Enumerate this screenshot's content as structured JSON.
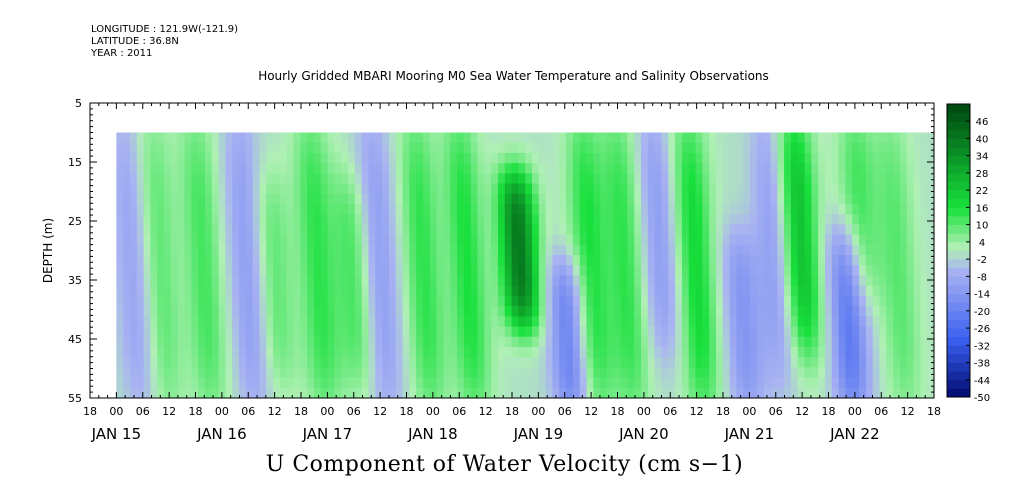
{
  "header": {
    "longitude": "LONGITUDE : 121.9W(-121.9)",
    "latitude": "LATITUDE : 36.8N",
    "year": "YEAR : 2011"
  },
  "chart_data": {
    "type": "heatmap",
    "title": "Hourly Gridded MBARI Mooring M0 Sea Water Temperature and Salinity Observations",
    "variable_label": "U Component of Water Velocity (cm s−1)",
    "ylabel": "DEPTH (m)",
    "y_ticks": [
      5,
      15,
      25,
      35,
      45,
      55
    ],
    "y_range": [
      5,
      55
    ],
    "y_data_range": [
      10,
      55
    ],
    "x_hour_ticks": [
      "18",
      "00",
      "06",
      "12",
      "18",
      "00",
      "06",
      "12",
      "18",
      "00",
      "06",
      "12",
      "18",
      "00",
      "06",
      "12",
      "18",
      "00",
      "06",
      "12",
      "18",
      "00",
      "06",
      "12",
      "18",
      "00",
      "06",
      "12",
      "18",
      "00",
      "06",
      "12",
      "18"
    ],
    "x_day_labels": [
      "JAN 15",
      "JAN 16",
      "JAN 17",
      "JAN 18",
      "JAN 19",
      "JAN 20",
      "JAN 21",
      "JAN 22"
    ],
    "x_range_hours": [
      -6,
      186
    ],
    "x_data_start_hours": 0,
    "colorbar_ticks": [
      "46",
      "40",
      "34",
      "28",
      "22",
      "16",
      "10",
      "4",
      "-2",
      "-8",
      "-14",
      "-20",
      "-26",
      "-32",
      "-38",
      "-44",
      "-50"
    ],
    "colorbar_range": [
      -50,
      52
    ],
    "colors": {
      "strong_negative": "#000a6e",
      "negative": "#3a5ff0",
      "weak_negative": "#a9b3f2",
      "weak_positive": "#b0f0b5",
      "positive": "#18e03c",
      "strong_positive": "#004d12"
    },
    "features": [
      {
        "hour": 2,
        "depth_top": 10,
        "depth_bottom": 55,
        "value": -10
      },
      {
        "hour": 8,
        "depth_top": 10,
        "depth_bottom": 55,
        "value": 10
      },
      {
        "hour": 18,
        "depth_top": 10,
        "depth_bottom": 55,
        "value": 12
      },
      {
        "hour": 28,
        "depth_top": 10,
        "depth_bottom": 55,
        "value": -12
      },
      {
        "hour": 34,
        "depth_top": 20,
        "depth_bottom": 50,
        "value": 10
      },
      {
        "hour": 44,
        "depth_top": 10,
        "depth_bottom": 55,
        "value": 14
      },
      {
        "hour": 52,
        "depth_top": 20,
        "depth_bottom": 50,
        "value": 12
      },
      {
        "hour": 58,
        "depth_top": 10,
        "depth_bottom": 55,
        "value": -12
      },
      {
        "hour": 68,
        "depth_top": 10,
        "depth_bottom": 55,
        "value": 14
      },
      {
        "hour": 78,
        "depth_top": 10,
        "depth_bottom": 55,
        "value": 16
      },
      {
        "hour": 90,
        "depth_top": 20,
        "depth_bottom": 40,
        "value": 40
      },
      {
        "hour": 100,
        "depth_top": 35,
        "depth_bottom": 55,
        "value": -20
      },
      {
        "hour": 106,
        "depth_top": 10,
        "depth_bottom": 55,
        "value": 16
      },
      {
        "hour": 114,
        "depth_top": 10,
        "depth_bottom": 55,
        "value": 14
      },
      {
        "hour": 122,
        "depth_top": 10,
        "depth_bottom": 45,
        "value": -12
      },
      {
        "hour": 130,
        "depth_top": 10,
        "depth_bottom": 55,
        "value": 18
      },
      {
        "hour": 140,
        "depth_top": 30,
        "depth_bottom": 55,
        "value": -14
      },
      {
        "hour": 148,
        "depth_top": 10,
        "depth_bottom": 50,
        "value": -12
      },
      {
        "hour": 154,
        "depth_top": 10,
        "depth_bottom": 45,
        "value": 24
      },
      {
        "hour": 164,
        "depth_top": 30,
        "depth_bottom": 55,
        "value": -22
      },
      {
        "hour": 168,
        "depth_top": 10,
        "depth_bottom": 35,
        "value": 12
      },
      {
        "hour": 176,
        "depth_top": 10,
        "depth_bottom": 55,
        "value": 10
      }
    ]
  }
}
